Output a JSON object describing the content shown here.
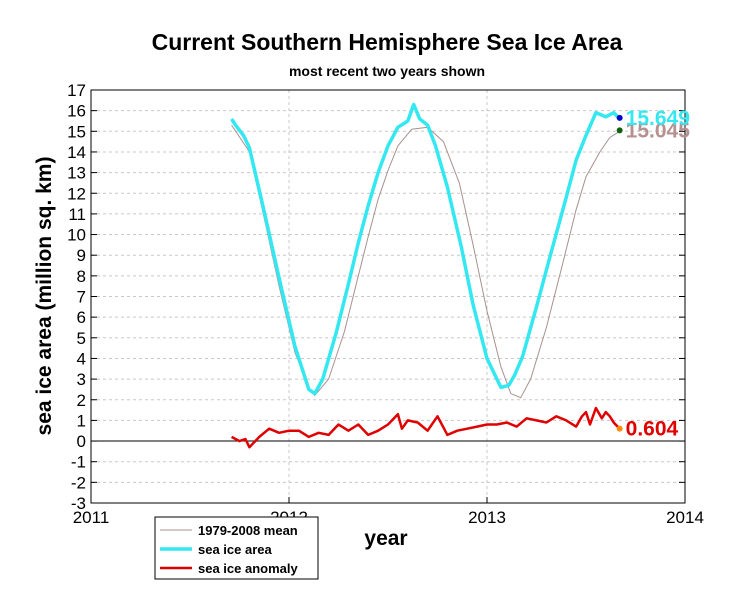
{
  "chart_data": {
    "type": "line",
    "title": "Current Southern Hemisphere Sea Ice Area",
    "subtitle": "most recent two years shown",
    "xlabel": "year",
    "ylabel": "sea ice area (million sq. km)",
    "xlim": [
      2011,
      2014
    ],
    "ylim": [
      -3,
      17
    ],
    "x_ticks": [
      2011,
      2012,
      2013,
      2014
    ],
    "x_tick_labels": [
      "2011",
      "2012",
      "2013",
      "2014"
    ],
    "y_ticks": [
      -3,
      -2,
      -1,
      0,
      1,
      2,
      3,
      4,
      5,
      6,
      7,
      8,
      9,
      10,
      11,
      12,
      13,
      14,
      15,
      16,
      17
    ],
    "grid": true,
    "legend": {
      "placement": "bottom-left, below axis",
      "entries": [
        "1979-2008 mean",
        "sea ice area",
        "sea ice anomaly"
      ]
    },
    "series": [
      {
        "name": "1979-2008 mean",
        "color": "#a89090",
        "x": [
          2011.71,
          2011.8,
          2011.87,
          2011.95,
          2012.03,
          2012.1,
          2012.13,
          2012.2,
          2012.28,
          2012.35,
          2012.4,
          2012.45,
          2012.5,
          2012.55,
          2012.62,
          2012.7,
          2012.78,
          2012.86,
          2012.93,
          2013.0,
          2013.07,
          2013.12,
          2013.17,
          2013.22,
          2013.3,
          2013.38,
          2013.45,
          2013.5,
          2013.57,
          2013.62,
          2013.67
        ],
        "y": [
          15.3,
          14.0,
          11.0,
          7.5,
          4.3,
          2.6,
          2.2,
          3.0,
          5.3,
          8.0,
          9.9,
          11.7,
          13.1,
          14.3,
          15.1,
          15.2,
          14.5,
          12.5,
          9.5,
          6.3,
          3.6,
          2.3,
          2.1,
          3.0,
          5.5,
          8.5,
          11.2,
          12.8,
          14.0,
          14.7,
          15.0
        ]
      },
      {
        "name": "sea ice area",
        "color": "#33e8f0",
        "x": [
          2011.71,
          2011.73,
          2011.77,
          2011.8,
          2011.87,
          2011.95,
          2012.03,
          2012.1,
          2012.13,
          2012.17,
          2012.24,
          2012.3,
          2012.35,
          2012.4,
          2012.45,
          2012.5,
          2012.55,
          2012.6,
          2012.63,
          2012.66,
          2012.7,
          2012.74,
          2012.8,
          2012.87,
          2012.93,
          2013.0,
          2013.07,
          2013.11,
          2013.14,
          2013.18,
          2013.25,
          2013.32,
          2013.4,
          2013.45,
          2013.5,
          2013.55,
          2013.6,
          2013.64,
          2013.67
        ],
        "y": [
          15.6,
          15.3,
          14.8,
          14.2,
          11.3,
          7.9,
          4.6,
          2.5,
          2.3,
          3.0,
          5.3,
          7.6,
          9.6,
          11.4,
          13.0,
          14.3,
          15.2,
          15.5,
          16.3,
          15.6,
          15.3,
          14.3,
          12.3,
          9.4,
          6.6,
          4.0,
          2.6,
          2.7,
          3.2,
          4.1,
          6.5,
          9.0,
          11.8,
          13.6,
          14.8,
          15.9,
          15.7,
          15.9,
          15.6
        ]
      },
      {
        "name": "sea ice anomaly",
        "color": "#e00000",
        "x": [
          2011.71,
          2011.75,
          2011.78,
          2011.8,
          2011.85,
          2011.9,
          2011.95,
          2012.0,
          2012.05,
          2012.1,
          2012.15,
          2012.2,
          2012.25,
          2012.3,
          2012.35,
          2012.4,
          2012.45,
          2012.5,
          2012.55,
          2012.57,
          2012.6,
          2012.65,
          2012.7,
          2012.75,
          2012.8,
          2012.85,
          2012.9,
          2012.95,
          2013.0,
          2013.05,
          2013.1,
          2013.15,
          2013.2,
          2013.25,
          2013.3,
          2013.35,
          2013.4,
          2013.45,
          2013.48,
          2013.5,
          2013.52,
          2013.55,
          2013.58,
          2013.6,
          2013.62,
          2013.64,
          2013.67
        ],
        "y": [
          0.2,
          0.0,
          0.1,
          -0.3,
          0.2,
          0.6,
          0.4,
          0.5,
          0.5,
          0.2,
          0.4,
          0.3,
          0.8,
          0.5,
          0.8,
          0.3,
          0.5,
          0.8,
          1.3,
          0.6,
          1.0,
          0.9,
          0.5,
          1.2,
          0.3,
          0.5,
          0.6,
          0.7,
          0.8,
          0.8,
          0.9,
          0.7,
          1.1,
          1.0,
          0.9,
          1.2,
          1.0,
          0.7,
          1.2,
          1.4,
          0.8,
          1.6,
          1.1,
          1.4,
          1.2,
          0.9,
          0.6
        ]
      }
    ],
    "end_markers": [
      {
        "series": "sea ice area",
        "x": 2013.67,
        "y": 15.649,
        "color": "#0000cc"
      },
      {
        "series": "1979-2008 mean",
        "x": 2013.67,
        "y": 15.045,
        "color": "#106010"
      },
      {
        "series": "sea ice anomaly",
        "x": 2013.67,
        "y": 0.604,
        "color": "#ff8c00"
      }
    ],
    "annotations": [
      {
        "text": "15.045",
        "color": "#b89090",
        "y": 15.045
      },
      {
        "text": "15.649",
        "color": "#33e8f0",
        "y": 15.649
      },
      {
        "text": "0.604",
        "color": "#e00000",
        "y": 0.604
      }
    ]
  }
}
